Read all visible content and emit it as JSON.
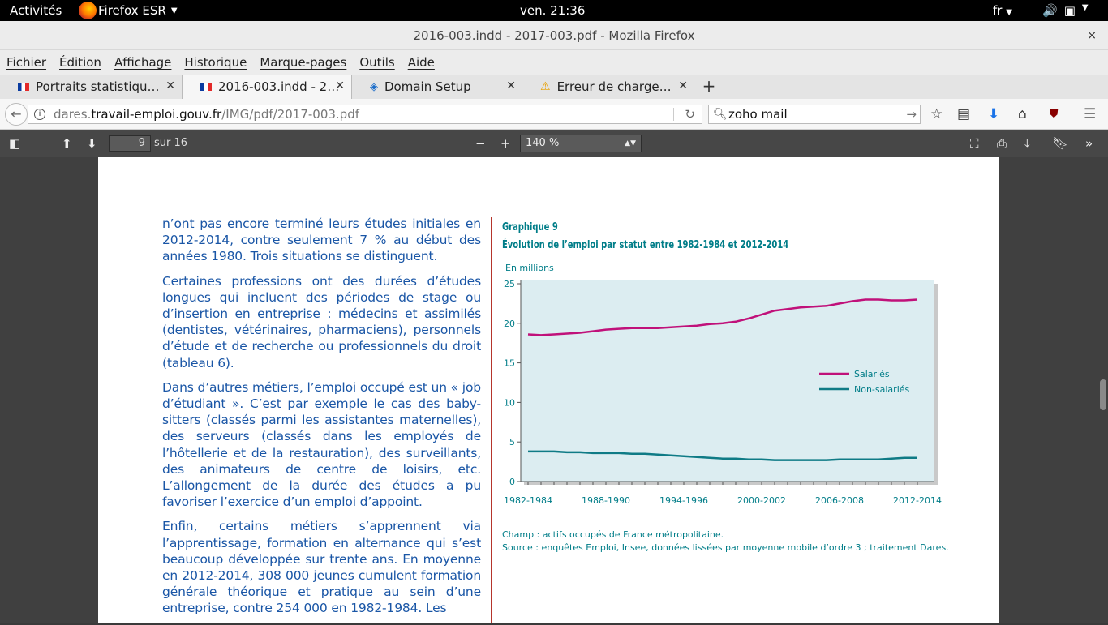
{
  "desktop": {
    "activities": "Activités",
    "app_name": "Firefox ESR",
    "clock": "ven. 21:36",
    "lang": "fr"
  },
  "window": {
    "title": "2016-003.indd - 2017-003.pdf - Mozilla Firefox",
    "close": "×"
  },
  "menu": [
    "Fichier",
    "Édition",
    "Affichage",
    "Historique",
    "Marque-pages",
    "Outils",
    "Aide"
  ],
  "tabs": [
    {
      "label": "Portraits statistiqu…",
      "icon": "flag-fr"
    },
    {
      "label": "2016-003.indd - 2…",
      "icon": "flag-fr"
    },
    {
      "label": "Domain Setup",
      "icon": "zoho-icon"
    },
    {
      "label": "Erreur de charge…",
      "icon": "warning-icon"
    }
  ],
  "urlbar": {
    "prefix": "dares.",
    "domain": "travail-emploi.gouv.fr",
    "path": "/IMG/pdf/2017-003.pdf"
  },
  "search": {
    "value": "zoho mail"
  },
  "pdf_toolbar": {
    "page": "9",
    "page_count": "sur 16",
    "zoom": "140 %"
  },
  "document": {
    "paragraphs": [
      "n’ont pas encore terminé leurs études initiales en 2012-2014, contre seulement 7 % au début des années 1980. Trois situations se distinguent.",
      "Certaines professions ont des durées d’études longues qui incluent des périodes de stage ou d’insertion en entreprise : médecins et assimilés (dentistes, vétérinaires, pharmaciens), personnels d’étude et de recherche ou professionnels du droit (tableau 6).",
      "Dans d’autres métiers, l’emploi occupé est un « job d’étudiant ». C’est par exemple le cas des baby-sitters (classés parmi les assistantes maternelles), des serveurs (classés dans les employés de l’hôtellerie et de la restauration), des surveillants, des animateurs de centre de loisirs, etc. L’allongement de la durée des études a pu favoriser l’exercice d’un emploi d’appoint.",
      "Enfin, certains métiers s’apprennent via l’apprentissage, formation en alternance qui s’est beaucoup développée sur trente ans. En moyenne en 2012-2014, 308 000 jeunes cumulent formation générale théorique et pratique au sein d’une entreprise, contre 254 000 en 1982-1984. Les"
    ],
    "graph_label": "Graphique 9",
    "graph_title": "Évolution de l’emploi par statut entre 1982-1984 et 2012-2014",
    "unit": "En millions",
    "note_champ": "Champ : actifs occupés de France métropolitaine.",
    "note_source": "Source : enquêtes Emploi, Insee, données lissées par moyenne mobile d’ordre 3 ; traitement Dares."
  },
  "chart_data": {
    "type": "line",
    "title": "Évolution de l’emploi par statut entre 1982-1984 et 2012-2014",
    "ylabel": "En millions",
    "ylim": [
      0,
      25
    ],
    "yticks": [
      "0",
      "5",
      "10",
      "15",
      "20",
      "25"
    ],
    "x": [
      "1982-1984",
      "1983-1985",
      "1984-1986",
      "1985-1987",
      "1986-1988",
      "1987-1989",
      "1988-1990",
      "1989-1991",
      "1990-1992",
      "1991-1993",
      "1992-1994",
      "1993-1995",
      "1994-1996",
      "1995-1997",
      "1996-1998",
      "1997-1999",
      "1998-2000",
      "1999-2001",
      "2000-2002",
      "2001-2003",
      "2002-2004",
      "2003-2005",
      "2004-2006",
      "2005-2007",
      "2006-2008",
      "2007-2009",
      "2008-2010",
      "2009-2011",
      "2010-2012",
      "2011-2013",
      "2012-2014"
    ],
    "xtick_labels": [
      "1982-1984",
      "1988-1990",
      "1994-1996",
      "2000-2002",
      "2006-2008",
      "2012-2014"
    ],
    "series": [
      {
        "name": "Salariés",
        "color": "#c0117a",
        "values": [
          18.6,
          18.5,
          18.6,
          18.7,
          18.8,
          19.0,
          19.2,
          19.3,
          19.4,
          19.4,
          19.4,
          19.5,
          19.6,
          19.7,
          19.9,
          20.0,
          20.2,
          20.6,
          21.1,
          21.6,
          21.8,
          22.0,
          22.1,
          22.2,
          22.5,
          22.8,
          23.0,
          23.0,
          22.9,
          22.9,
          23.0
        ]
      },
      {
        "name": "Non-salariés",
        "color": "#0f7b86",
        "values": [
          3.8,
          3.8,
          3.8,
          3.7,
          3.7,
          3.6,
          3.6,
          3.6,
          3.5,
          3.5,
          3.4,
          3.3,
          3.2,
          3.1,
          3.0,
          2.9,
          2.9,
          2.8,
          2.8,
          2.7,
          2.7,
          2.7,
          2.7,
          2.7,
          2.8,
          2.8,
          2.8,
          2.8,
          2.9,
          3.0,
          3.0
        ]
      }
    ],
    "grid": false,
    "legend": "right",
    "plot_background": "#dcedf1"
  }
}
